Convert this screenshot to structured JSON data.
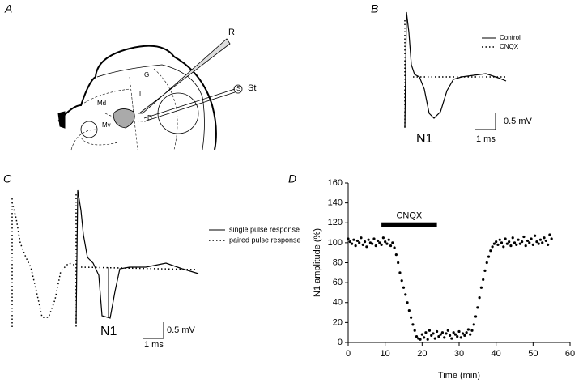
{
  "figure": {
    "panel_a": {
      "label": "A",
      "r": "R",
      "st": "St",
      "s": "S",
      "md": "Md",
      "mv": "Mv",
      "l": "L",
      "d": "D",
      "g": "G"
    },
    "panel_b": {
      "label": "B",
      "legend": [
        "Control",
        "CNQX"
      ],
      "peak": "N1",
      "amp_scale": "0.5 mV",
      "time_scale": "1 ms"
    },
    "panel_c": {
      "label": "C",
      "legend": [
        "single pulse response",
        "paired pulse response"
      ],
      "peak": "N1",
      "amp_scale": "0.5 mV",
      "time_scale": "1 ms"
    },
    "panel_d": {
      "label": "D"
    }
  },
  "chart_data": {
    "type": "scatter",
    "x_label": "Time (min)",
    "y_label": "N1 amplitude (%)",
    "color": "#000000",
    "annotation": {
      "text": "CNQX",
      "start": 9,
      "end": 24,
      "y": 118
    },
    "xlim": [
      0,
      60
    ],
    "ylim": [
      0,
      160
    ],
    "xticks": [
      0,
      10,
      20,
      30,
      40,
      50,
      60
    ],
    "yticks": [
      0,
      20,
      40,
      60,
      80,
      100,
      120,
      140,
      160
    ],
    "x": [
      0,
      0.5,
      1,
      1.5,
      2,
      2.5,
      3,
      3.5,
      4,
      4.5,
      5,
      5.5,
      6,
      6.5,
      7,
      7.5,
      8,
      8.5,
      9,
      9.5,
      10,
      10.5,
      11,
      11.5,
      12,
      12.5,
      13,
      13.5,
      14,
      14.5,
      15,
      15.5,
      16,
      16.5,
      17,
      17.5,
      18,
      18.5,
      19,
      19.5,
      20,
      20.5,
      21,
      21.5,
      22,
      22.5,
      23,
      23.5,
      24,
      24.5,
      25,
      25.5,
      26,
      26.5,
      27,
      27.5,
      28,
      28.5,
      29,
      29.5,
      30,
      30.5,
      31,
      31.5,
      32,
      32.5,
      33,
      33.5,
      34,
      34.5,
      35,
      35.5,
      36,
      36.5,
      37,
      37.5,
      38,
      38.5,
      39,
      39.5,
      40,
      40.5,
      41,
      41.5,
      42,
      42.5,
      43,
      43.5,
      44,
      44.5,
      45,
      45.5,
      46,
      46.5,
      47,
      47.5,
      48,
      48.5,
      49,
      49.5,
      50,
      50.5,
      51,
      51.5,
      52,
      52.5,
      53,
      53.5,
      54,
      54.5,
      55
    ],
    "values": [
      104,
      101,
      99,
      103,
      97,
      102,
      100,
      105,
      98,
      101,
      96,
      103,
      100,
      99,
      104,
      97,
      102,
      100,
      98,
      105,
      101,
      99,
      103,
      97,
      100,
      95,
      88,
      80,
      70,
      62,
      55,
      48,
      40,
      32,
      25,
      18,
      12,
      6,
      4,
      3,
      8,
      5,
      10,
      3,
      12,
      7,
      9,
      4,
      11,
      6,
      8,
      10,
      5,
      9,
      12,
      7,
      4,
      10,
      8,
      6,
      11,
      5,
      9,
      7,
      10,
      13,
      8,
      12,
      18,
      26,
      35,
      45,
      55,
      63,
      72,
      80,
      86,
      92,
      96,
      99,
      101,
      98,
      103,
      100,
      96,
      104,
      99,
      101,
      97,
      105,
      100,
      98,
      103,
      99,
      101,
      106,
      97,
      102,
      100,
      104,
      98,
      107,
      101,
      99,
      103,
      100,
      105,
      102,
      98,
      108,
      104
    ]
  }
}
